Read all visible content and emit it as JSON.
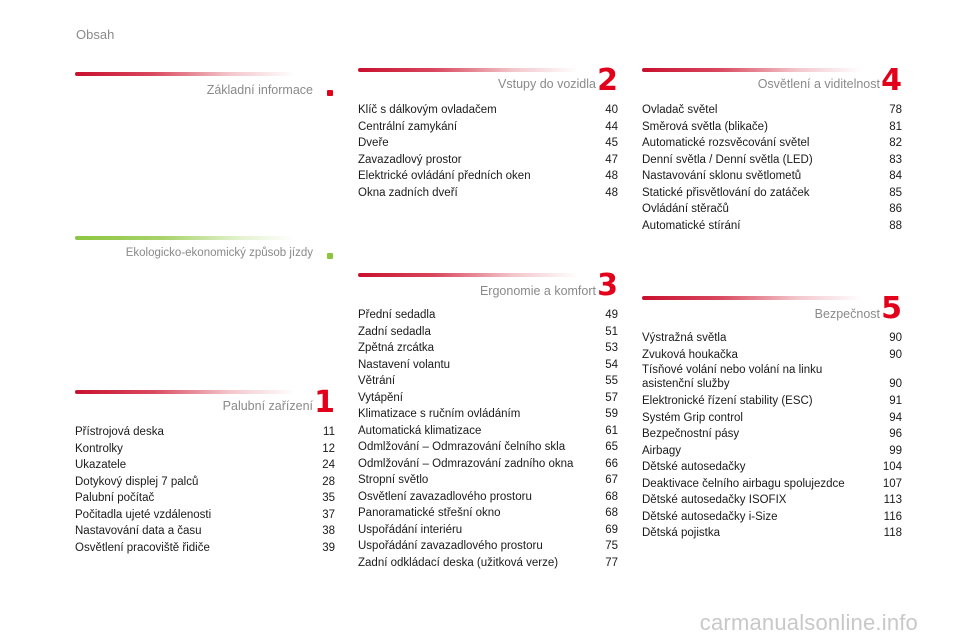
{
  "page_title": "Obsah",
  "watermark": "carmanualsonline.info",
  "colors": {
    "accent_red": "#e2001a",
    "accent_green": "#8cc63f",
    "muted_text": "#8a8a8a"
  },
  "sections": {
    "zakladni": {
      "title": "Základní informace",
      "number": ""
    },
    "eko": {
      "title": "Ekologicko-ekonomický způsob jízdy",
      "number": ""
    },
    "palubni": {
      "title": "Palubní zařízení",
      "number": "1",
      "items": [
        {
          "label": "Přístrojová deska",
          "page": "11"
        },
        {
          "label": "Kontrolky",
          "page": "12"
        },
        {
          "label": "Ukazatele",
          "page": "24"
        },
        {
          "label": "Dotykový displej 7 palců",
          "page": "28"
        },
        {
          "label": "Palubní počítač",
          "page": "35"
        },
        {
          "label": "Počitadla ujeté vzdálenosti",
          "page": "37"
        },
        {
          "label": "Nastavování data a času",
          "page": "38"
        },
        {
          "label": "Osvětlení pracoviště řidiče",
          "page": "39"
        }
      ]
    },
    "vstupy": {
      "title": "Vstupy do vozidla",
      "number": "2",
      "items": [
        {
          "label": "Klíč s dálkovým ovladačem",
          "page": "40"
        },
        {
          "label": "Centrální zamykání",
          "page": "44"
        },
        {
          "label": "Dveře",
          "page": "45"
        },
        {
          "label": "Zavazadlový prostor",
          "page": "47"
        },
        {
          "label": "Elektrické ovládání předních oken",
          "page": "48"
        },
        {
          "label": "Okna zadních dveří",
          "page": "48"
        }
      ]
    },
    "ergonomie": {
      "title": "Ergonomie a komfort",
      "number": "3",
      "items": [
        {
          "label": "Přední sedadla",
          "page": "49"
        },
        {
          "label": "Zadní sedadla",
          "page": "51"
        },
        {
          "label": "Zpětná zrcátka",
          "page": "53"
        },
        {
          "label": "Nastavení volantu",
          "page": "54"
        },
        {
          "label": "Větrání",
          "page": "55"
        },
        {
          "label": "Vytápění",
          "page": "57"
        },
        {
          "label": "Klimatizace s ručním ovládáním",
          "page": "59"
        },
        {
          "label": "Automatická klimatizace",
          "page": "61"
        },
        {
          "label": "Odmlžování – Odmrazování čelního skla",
          "page": "65"
        },
        {
          "label": "Odmlžování – Odmrazování zadního okna",
          "page": "66"
        },
        {
          "label": "Stropní světlo",
          "page": "67"
        },
        {
          "label": "Osvětlení zavazadlového prostoru",
          "page": "68"
        },
        {
          "label": "Panoramatické střešní okno",
          "page": "68"
        },
        {
          "label": "Uspořádání interiéru",
          "page": "69"
        },
        {
          "label": "Uspořádání zavazadlového prostoru",
          "page": "75"
        },
        {
          "label": "Zadní odkládací deska (užitková verze)",
          "page": "77"
        }
      ]
    },
    "osvetleni": {
      "title": "Osvětlení a viditelnost",
      "number": "4",
      "items": [
        {
          "label": "Ovladač světel",
          "page": "78"
        },
        {
          "label": "Směrová světla (blikače)",
          "page": "81"
        },
        {
          "label": "Automatické rozsvěcování světel",
          "page": "82"
        },
        {
          "label": "Denní světla / Denní světla (LED)",
          "page": "83"
        },
        {
          "label": "Nastavování sklonu světlometů",
          "page": "84"
        },
        {
          "label": "Statické přisvětlování do zatáček",
          "page": "85"
        },
        {
          "label": "Ovládání stěračů",
          "page": "86"
        },
        {
          "label": "Automatické stírání",
          "page": "88"
        }
      ]
    },
    "bezpecnost": {
      "title": "Bezpečnost",
      "number": "5",
      "items": [
        {
          "label": "Výstražná světla",
          "page": "90"
        },
        {
          "label": "Zvuková houkačka",
          "page": "90"
        },
        {
          "label": "Tísňové volání nebo volání na linku\n   asistenční služby",
          "page": "90"
        },
        {
          "label": "Elektronické řízení stability (ESC)",
          "page": "91"
        },
        {
          "label": "Systém Grip control",
          "page": "94"
        },
        {
          "label": "Bezpečnostní pásy",
          "page": "96"
        },
        {
          "label": "Airbagy",
          "page": "99"
        },
        {
          "label": "Dětské autosedačky",
          "page": "104"
        },
        {
          "label": "Deaktivace čelního airbagu spolujezdce",
          "page": "107"
        },
        {
          "label": "Dětské autosedačky ISOFIX",
          "page": "113"
        },
        {
          "label": "Dětské autosedačky i-Size",
          "page": "116"
        },
        {
          "label": "Dětská pojistka",
          "page": "118"
        }
      ]
    }
  }
}
